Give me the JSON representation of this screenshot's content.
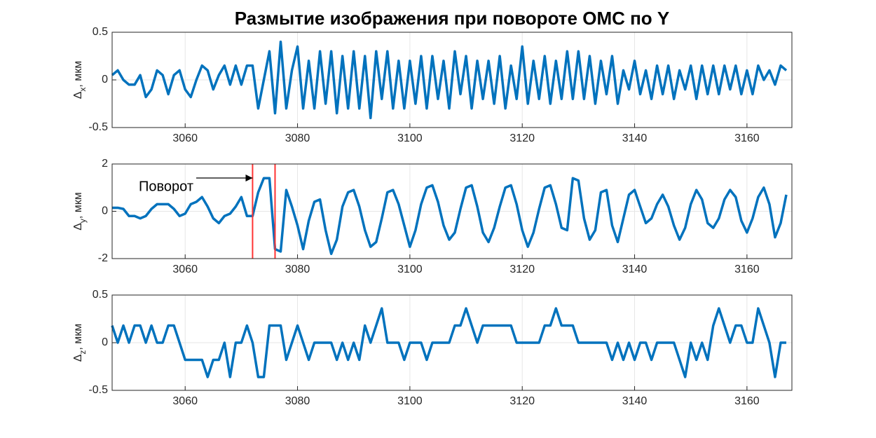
{
  "title": "Размытие изображения при повороте ОМС по Y",
  "chart_data": [
    {
      "type": "line",
      "ylabel": {
        "symbol": "Δ",
        "sub": "x",
        "unit": ", мкм"
      },
      "xlim": [
        3047,
        3168
      ],
      "xticks": [
        3060,
        3080,
        3100,
        3120,
        3140,
        3160
      ],
      "ylim": [
        -0.5,
        0.5
      ],
      "yticks": [
        -0.5,
        0,
        0.5
      ],
      "grid": true,
      "x": [
        3047,
        3048,
        3049,
        3050,
        3051,
        3052,
        3053,
        3054,
        3055,
        3056,
        3057,
        3058,
        3059,
        3060,
        3061,
        3062,
        3063,
        3064,
        3065,
        3066,
        3067,
        3068,
        3069,
        3070,
        3071,
        3072,
        3073,
        3074,
        3075,
        3076,
        3077,
        3078,
        3079,
        3080,
        3081,
        3082,
        3083,
        3084,
        3085,
        3086,
        3087,
        3088,
        3089,
        3090,
        3091,
        3092,
        3093,
        3094,
        3095,
        3096,
        3097,
        3098,
        3099,
        3100,
        3101,
        3102,
        3103,
        3104,
        3105,
        3106,
        3107,
        3108,
        3109,
        3110,
        3111,
        3112,
        3113,
        3114,
        3115,
        3116,
        3117,
        3118,
        3119,
        3120,
        3121,
        3122,
        3123,
        3124,
        3125,
        3126,
        3127,
        3128,
        3129,
        3130,
        3131,
        3132,
        3133,
        3134,
        3135,
        3136,
        3137,
        3138,
        3139,
        3140,
        3141,
        3142,
        3143,
        3144,
        3145,
        3146,
        3147,
        3148,
        3149,
        3150,
        3151,
        3152,
        3153,
        3154,
        3155,
        3156,
        3157,
        3158,
        3159,
        3160,
        3161,
        3162,
        3163,
        3164,
        3165,
        3166,
        3167
      ],
      "series": [
        {
          "color": "#0072bd",
          "values": [
            0.05,
            0.1,
            0.0,
            -0.05,
            -0.05,
            0.05,
            -0.18,
            -0.1,
            0.1,
            0.05,
            -0.15,
            0.05,
            0.1,
            -0.1,
            -0.18,
            0.0,
            0.15,
            0.1,
            -0.1,
            0.05,
            0.15,
            -0.05,
            0.15,
            -0.05,
            0.15,
            0.15,
            -0.3,
            0.0,
            0.3,
            -0.35,
            0.4,
            -0.3,
            0.1,
            0.35,
            -0.3,
            0.2,
            -0.3,
            0.3,
            -0.25,
            0.3,
            -0.35,
            0.25,
            -0.3,
            0.3,
            -0.3,
            0.25,
            -0.4,
            0.3,
            -0.2,
            0.3,
            -0.3,
            0.2,
            -0.3,
            0.2,
            -0.25,
            0.25,
            -0.3,
            0.25,
            -0.2,
            0.2,
            -0.3,
            0.3,
            -0.15,
            0.25,
            -0.3,
            0.2,
            -0.2,
            0.2,
            -0.25,
            0.25,
            -0.3,
            0.15,
            -0.2,
            0.35,
            -0.25,
            0.2,
            -0.2,
            0.25,
            -0.25,
            0.2,
            -0.2,
            0.3,
            -0.2,
            0.3,
            -0.2,
            0.25,
            -0.25,
            0.2,
            -0.15,
            0.25,
            -0.25,
            0.1,
            -0.1,
            0.2,
            -0.15,
            0.1,
            -0.2,
            0.15,
            -0.15,
            0.15,
            -0.2,
            0.1,
            -0.1,
            0.15,
            -0.2,
            0.15,
            -0.15,
            0.15,
            -0.15,
            0.15,
            -0.1,
            0.15,
            -0.15,
            0.1,
            -0.15,
            0.15,
            0.0,
            0.1,
            -0.05,
            0.15,
            0.1
          ]
        }
      ]
    },
    {
      "type": "line",
      "ylabel": {
        "symbol": "Δ",
        "sub": "y",
        "unit": ", мкм"
      },
      "xlim": [
        3047,
        3168
      ],
      "xticks": [
        3060,
        3080,
        3100,
        3120,
        3140,
        3160
      ],
      "ylim": [
        -2,
        2
      ],
      "yticks": [
        -2,
        0,
        2
      ],
      "grid": true,
      "annotation": "Поворот",
      "vlines": [
        3072,
        3076
      ],
      "vline_color": "#ff3333",
      "x": [
        3047,
        3048,
        3049,
        3050,
        3051,
        3052,
        3053,
        3054,
        3055,
        3056,
        3057,
        3058,
        3059,
        3060,
        3061,
        3062,
        3063,
        3064,
        3065,
        3066,
        3067,
        3068,
        3069,
        3070,
        3071,
        3072,
        3073,
        3074,
        3075,
        3076,
        3077,
        3078,
        3079,
        3080,
        3081,
        3082,
        3083,
        3084,
        3085,
        3086,
        3087,
        3088,
        3089,
        3090,
        3091,
        3092,
        3093,
        3094,
        3095,
        3096,
        3097,
        3098,
        3099,
        3100,
        3101,
        3102,
        3103,
        3104,
        3105,
        3106,
        3107,
        3108,
        3109,
        3110,
        3111,
        3112,
        3113,
        3114,
        3115,
        3116,
        3117,
        3118,
        3119,
        3120,
        3121,
        3122,
        3123,
        3124,
        3125,
        3126,
        3127,
        3128,
        3129,
        3130,
        3131,
        3132,
        3133,
        3134,
        3135,
        3136,
        3137,
        3138,
        3139,
        3140,
        3141,
        3142,
        3143,
        3144,
        3145,
        3146,
        3147,
        3148,
        3149,
        3150,
        3151,
        3152,
        3153,
        3154,
        3155,
        3156,
        3157,
        3158,
        3159,
        3160,
        3161,
        3162,
        3163,
        3164,
        3165,
        3166,
        3167
      ],
      "series": [
        {
          "color": "#0072bd",
          "values": [
            0.15,
            0.15,
            0.1,
            -0.2,
            -0.2,
            -0.3,
            -0.2,
            0.1,
            0.3,
            0.3,
            0.3,
            0.1,
            -0.2,
            -0.1,
            0.3,
            0.4,
            0.6,
            0.2,
            -0.3,
            -0.5,
            -0.2,
            -0.1,
            0.2,
            0.6,
            -0.2,
            -0.2,
            0.8,
            1.4,
            1.4,
            -1.6,
            -1.7,
            0.9,
            0.2,
            -0.6,
            -1.6,
            -0.4,
            0.4,
            0.5,
            -0.8,
            -1.8,
            -1.2,
            0.2,
            0.8,
            0.9,
            0.2,
            -0.8,
            -1.5,
            -1.3,
            -0.3,
            0.8,
            0.9,
            0.3,
            -0.6,
            -1.5,
            -0.8,
            0.3,
            1.0,
            1.1,
            0.4,
            -0.6,
            -1.2,
            -0.9,
            0.1,
            1.0,
            1.1,
            0.2,
            -0.9,
            -1.3,
            -0.7,
            0.2,
            1.0,
            1.1,
            0.3,
            -0.8,
            -1.5,
            -0.9,
            0.1,
            1.0,
            1.1,
            0.3,
            -0.7,
            -0.8,
            1.4,
            1.3,
            -0.3,
            -1.2,
            -0.8,
            0.8,
            0.9,
            -0.6,
            -1.3,
            -0.3,
            0.7,
            0.9,
            0.2,
            -0.5,
            -0.3,
            0.3,
            0.7,
            0.2,
            -0.6,
            -1.2,
            -0.7,
            0.3,
            0.9,
            0.5,
            -0.5,
            -0.7,
            -0.3,
            0.5,
            0.9,
            0.6,
            -0.4,
            -0.9,
            -0.3,
            0.6,
            1.0,
            0.3,
            -1.1,
            -0.5,
            0.7
          ]
        }
      ]
    },
    {
      "type": "line",
      "ylabel": {
        "symbol": "Δ",
        "sub": "z",
        "unit": ", мкм"
      },
      "xlim": [
        3047,
        3168
      ],
      "xticks": [
        3060,
        3080,
        3100,
        3120,
        3140,
        3160
      ],
      "ylim": [
        -0.5,
        0.5
      ],
      "yticks": [
        -0.5,
        0,
        0.5
      ],
      "grid": true,
      "x": [
        3047,
        3048,
        3049,
        3050,
        3051,
        3052,
        3053,
        3054,
        3055,
        3056,
        3057,
        3058,
        3059,
        3060,
        3061,
        3062,
        3063,
        3064,
        3065,
        3066,
        3067,
        3068,
        3069,
        3070,
        3071,
        3072,
        3073,
        3074,
        3075,
        3076,
        3077,
        3078,
        3079,
        3080,
        3081,
        3082,
        3083,
        3084,
        3085,
        3086,
        3087,
        3088,
        3089,
        3090,
        3091,
        3092,
        3093,
        3094,
        3095,
        3096,
        3097,
        3098,
        3099,
        3100,
        3101,
        3102,
        3103,
        3104,
        3105,
        3106,
        3107,
        3108,
        3109,
        3110,
        3111,
        3112,
        3113,
        3114,
        3115,
        3116,
        3117,
        3118,
        3119,
        3120,
        3121,
        3122,
        3123,
        3124,
        3125,
        3126,
        3127,
        3128,
        3129,
        3130,
        3131,
        3132,
        3133,
        3134,
        3135,
        3136,
        3137,
        3138,
        3139,
        3140,
        3141,
        3142,
        3143,
        3144,
        3145,
        3146,
        3147,
        3148,
        3149,
        3150,
        3151,
        3152,
        3153,
        3154,
        3155,
        3156,
        3157,
        3158,
        3159,
        3160,
        3161,
        3162,
        3163,
        3164,
        3165,
        3166,
        3167
      ],
      "series": [
        {
          "color": "#0072bd",
          "values": [
            0.18,
            0,
            0.18,
            0,
            0.18,
            0.18,
            0,
            0.18,
            0,
            0,
            0.18,
            0.18,
            0,
            -0.18,
            -0.18,
            -0.18,
            -0.18,
            -0.36,
            -0.18,
            -0.18,
            0,
            -0.36,
            0,
            0,
            0.18,
            0,
            -0.36,
            -0.36,
            0.18,
            0.18,
            0.18,
            -0.18,
            0,
            0.18,
            0,
            -0.18,
            0,
            0,
            0,
            0,
            -0.18,
            0,
            -0.18,
            0,
            -0.18,
            0.18,
            0,
            0.18,
            0.36,
            0,
            0,
            0,
            -0.18,
            0,
            0,
            0,
            -0.18,
            0,
            0,
            0,
            0,
            0.18,
            0.18,
            0.36,
            0.18,
            0,
            0.18,
            0.18,
            0.18,
            0.18,
            0.18,
            0.18,
            0,
            0,
            0,
            0,
            0,
            0.18,
            0.18,
            0.36,
            0.18,
            0.18,
            0.18,
            0,
            0,
            0,
            0,
            0,
            0,
            -0.18,
            0,
            -0.18,
            0,
            -0.18,
            0,
            0,
            -0.18,
            0,
            0,
            0,
            0,
            -0.18,
            -0.36,
            0,
            -0.18,
            0,
            -0.18,
            0.18,
            0.36,
            0.18,
            0,
            0.18,
            0.18,
            0,
            0,
            0.36,
            0.18,
            0,
            -0.36,
            0,
            0
          ]
        }
      ]
    }
  ]
}
